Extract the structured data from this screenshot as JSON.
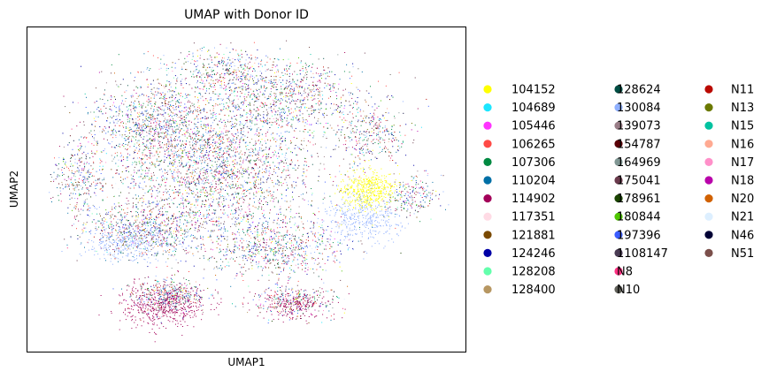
{
  "chart_data": {
    "type": "scatter",
    "title": "UMAP with Donor ID",
    "xlabel": "UMAP1",
    "ylabel": "UMAP2",
    "grid": false,
    "xticks": false,
    "yticks": false,
    "legend_placement": "right-outside",
    "legend_columns": 3,
    "series": [
      {
        "name": "104152",
        "color": "#ffff00"
      },
      {
        "name": "104689",
        "color": "#1ce6ff"
      },
      {
        "name": "105446",
        "color": "#ff34ff"
      },
      {
        "name": "106265",
        "color": "#ff4a46"
      },
      {
        "name": "107306",
        "color": "#008941"
      },
      {
        "name": "110204",
        "color": "#006fa6"
      },
      {
        "name": "114902",
        "color": "#a30059"
      },
      {
        "name": "117351",
        "color": "#ffdbe5"
      },
      {
        "name": "121881",
        "color": "#7a4900"
      },
      {
        "name": "124246",
        "color": "#0000a6"
      },
      {
        "name": "128208",
        "color": "#63ffac"
      },
      {
        "name": "128400",
        "color": "#b79762"
      },
      {
        "name": "128624",
        "color": "#004d43"
      },
      {
        "name": "130084",
        "color": "#8fb0ff"
      },
      {
        "name": "139073",
        "color": "#997d87"
      },
      {
        "name": "154787",
        "color": "#5a0007"
      },
      {
        "name": "164969",
        "color": "#809693"
      },
      {
        "name": "175041",
        "color": "#6a3a4c"
      },
      {
        "name": "178961",
        "color": "#1b4400"
      },
      {
        "name": "180844",
        "color": "#4fc601"
      },
      {
        "name": "197396",
        "color": "#3b5dff"
      },
      {
        "name": "1108147",
        "color": "#4a3b53"
      },
      {
        "name": "N8",
        "color": "#ff2f80"
      },
      {
        "name": "N10",
        "color": "#61615a"
      },
      {
        "name": "N11",
        "color": "#ba0900"
      },
      {
        "name": "N13",
        "color": "#6b7900"
      },
      {
        "name": "N15",
        "color": "#00c2a0"
      },
      {
        "name": "N16",
        "color": "#ffaa92"
      },
      {
        "name": "N17",
        "color": "#ff90c9"
      },
      {
        "name": "N18",
        "color": "#b903aa"
      },
      {
        "name": "N20",
        "color": "#d16100"
      },
      {
        "name": "N21",
        "color": "#ddefff"
      },
      {
        "name": "N46",
        "color": "#000035"
      },
      {
        "name": "N51",
        "color": "#7b4f4b"
      }
    ]
  }
}
